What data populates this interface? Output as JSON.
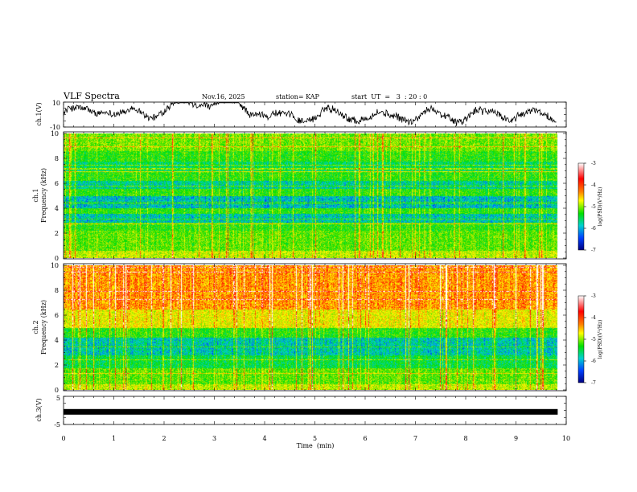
{
  "header": {
    "title": "VLF Spectra",
    "date": "Nov.16, 2025",
    "station": "station= KAP",
    "start": "start  UT  =   3  : 20 : 0"
  },
  "chart_data": [
    {
      "type": "line",
      "name": "ch1-waveform",
      "ylabel": "ch.1(V)",
      "ylim": [
        -10,
        10
      ],
      "yticks": [
        "10",
        "-10"
      ],
      "xlim": [
        0,
        10
      ]
    },
    {
      "type": "heatmap",
      "name": "ch1-spectrogram",
      "ylabel": "ch.1\nFrequency (kHz)",
      "ylabel_lines": [
        "ch.1",
        "Frequency (kHz)"
      ],
      "yticks": [
        "0",
        "2",
        "4",
        "6",
        "8",
        "10"
      ],
      "ylim": [
        0,
        10
      ],
      "xlim": [
        0,
        9.83
      ],
      "colorbar": {
        "label": "log(PSD)(V²/Hz)",
        "ticks": [
          "-3",
          "-4",
          "-5",
          "-6",
          "-7"
        ],
        "range": [
          -7,
          -3
        ]
      }
    },
    {
      "type": "heatmap",
      "name": "ch2-spectrogram",
      "ylabel": "ch.2\nFrequency (kHz)",
      "ylabel_lines": [
        "ch.2",
        "Frequency (kHz)"
      ],
      "yticks": [
        "0",
        "2",
        "4",
        "6",
        "8",
        "10"
      ],
      "ylim": [
        0,
        10
      ],
      "xlim": [
        0,
        9.83
      ],
      "colorbar": {
        "label": "log(PSD)(V²/Hz)",
        "ticks": [
          "-3",
          "-4",
          "-5",
          "-6",
          "-7"
        ],
        "range": [
          -7,
          -3
        ]
      }
    },
    {
      "type": "line",
      "name": "ch3-waveform",
      "ylabel": "ch.3(V)",
      "ylim": [
        -5,
        5
      ],
      "yticks": [
        "5",
        "-5"
      ],
      "value": -0.5,
      "xlim": [
        0,
        10
      ]
    }
  ],
  "xaxis": {
    "label": "Time  (min)",
    "ticks": [
      "0",
      "1",
      "2",
      "3",
      "4",
      "5",
      "6",
      "7",
      "8",
      "9",
      "10"
    ],
    "range": [
      0,
      10
    ]
  },
  "colors": {
    "axes": "#000000",
    "background": "#ffffff"
  }
}
